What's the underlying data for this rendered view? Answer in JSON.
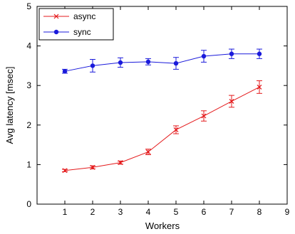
{
  "chart_data": {
    "type": "line",
    "xlabel": "Workers",
    "ylabel": "Avg latency [msec]",
    "xlim": [
      0,
      9
    ],
    "ylim": [
      0,
      5
    ],
    "xticks": [
      "1",
      "2",
      "3",
      "4",
      "5",
      "6",
      "7",
      "8",
      "9"
    ],
    "yticks": [
      "0",
      "1",
      "2",
      "3",
      "4",
      "5"
    ],
    "grid": false,
    "legend_position": "top-left",
    "x": [
      1,
      2,
      3,
      4,
      5,
      6,
      7,
      8
    ],
    "series": [
      {
        "name": "async",
        "color": "#e41a1c",
        "marker": "x",
        "values": [
          0.85,
          0.93,
          1.05,
          1.32,
          1.88,
          2.23,
          2.6,
          2.96
        ],
        "errors": [
          0.03,
          0.04,
          0.04,
          0.07,
          0.1,
          0.13,
          0.15,
          0.16
        ]
      },
      {
        "name": "sync",
        "color": "#1a1adb",
        "marker": "circle",
        "values": [
          3.36,
          3.5,
          3.58,
          3.6,
          3.56,
          3.74,
          3.8,
          3.8
        ],
        "errors": [
          0.05,
          0.16,
          0.12,
          0.08,
          0.15,
          0.15,
          0.12,
          0.12
        ]
      }
    ]
  }
}
